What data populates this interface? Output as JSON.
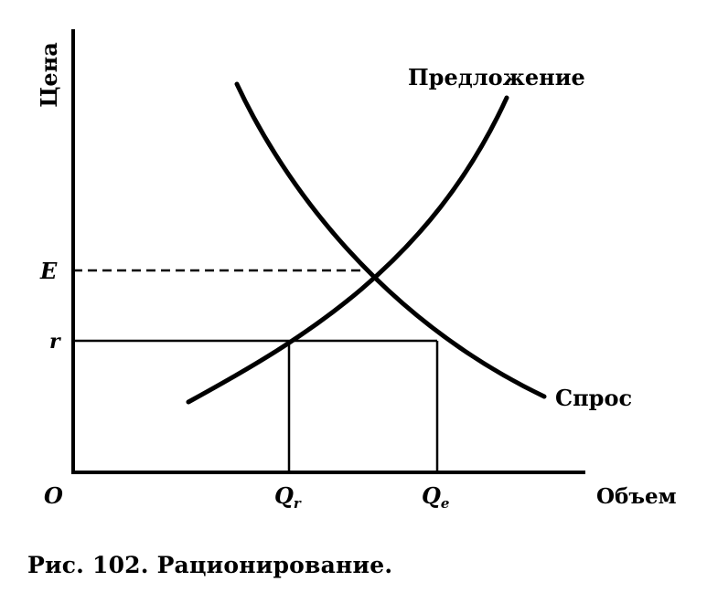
{
  "chart_data": {
    "type": "line",
    "ylabel": "Цена",
    "xlabel": "Объем",
    "origin_label": "O",
    "x_ticks": [
      {
        "key": "qr",
        "label": "Qr",
        "base": "Q",
        "sub": "r"
      },
      {
        "key": "qe",
        "label": "Qe",
        "base": "Q",
        "sub": "e"
      }
    ],
    "y_ticks": [
      {
        "key": "E",
        "label": "E"
      },
      {
        "key": "r",
        "label": "r"
      }
    ],
    "series": [
      {
        "name": "Предложение"
      },
      {
        "name": "Спрос"
      }
    ],
    "grid": false,
    "legend": "none"
  },
  "caption": "Рис. 102. Рационирование."
}
